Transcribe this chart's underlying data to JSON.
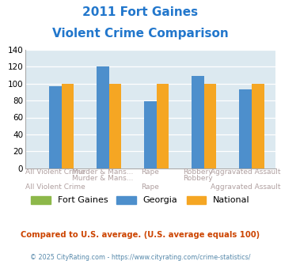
{
  "title_line1": "2011 Fort Gaines",
  "title_line2": "Violent Crime Comparison",
  "categories": [
    "All Violent Crime",
    "Murder & Mans...",
    "Rape",
    "Robbery",
    "Aggravated Assault"
  ],
  "fort_gaines": [
    0,
    0,
    0,
    0,
    0
  ],
  "georgia": [
    97,
    120,
    79,
    109,
    93
  ],
  "national": [
    100,
    100,
    100,
    100,
    100
  ],
  "color_fort_gaines": "#8db84a",
  "color_georgia": "#4d8fcc",
  "color_national": "#f5a623",
  "bg_color": "#dce9f0",
  "ylim": [
    0,
    140
  ],
  "yticks": [
    0,
    20,
    40,
    60,
    80,
    100,
    120,
    140
  ],
  "xlabel_color": "#b0a0a0",
  "title_color": "#2277cc",
  "footnote1": "Compared to U.S. average. (U.S. average equals 100)",
  "footnote2": "© 2025 CityRating.com - https://www.cityrating.com/crime-statistics/",
  "footnote1_color": "#cc4400",
  "footnote2_color": "#5588aa"
}
